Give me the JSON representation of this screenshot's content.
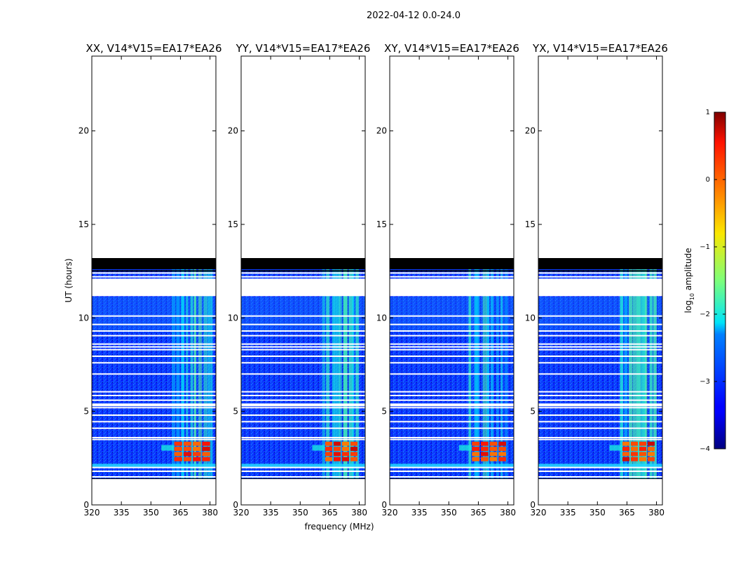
{
  "chart_data": {
    "type": "heatmap",
    "suptitle": "2022-04-12 0.0-24.0",
    "xlabel": "frequency (MHz)",
    "ylabel": "UT (hours)",
    "xlim": [
      320,
      383
    ],
    "ylim": [
      0,
      24
    ],
    "xticks": [
      "320",
      "335",
      "350",
      "365",
      "380"
    ],
    "yticks": [
      "0",
      "5",
      "10",
      "15",
      "20"
    ],
    "panels": [
      {
        "title": "XX, V14*V15=EA17*EA26",
        "rfi_x": [
          360,
          381
        ],
        "bright_band_y": [
          9.3,
          11.1
        ]
      },
      {
        "title": "YY, V14*V15=EA17*EA26",
        "rfi_x": [
          361,
          380
        ],
        "bright_band_y": [
          9.3,
          11.1
        ]
      },
      {
        "title": "XY, V14*V15=EA17*EA26",
        "rfi_x": [
          360,
          380
        ],
        "bright_band_y": [
          9.3,
          11.1
        ]
      },
      {
        "title": "YX, V14*V15=EA17*EA26",
        "rfi_x": [
          361,
          380
        ],
        "bright_band_y": [
          9.3,
          11.1
        ]
      }
    ],
    "colorbar": {
      "label": "log10 amplitude",
      "label_base": "log",
      "label_sub": "10",
      "label_rest": " amplitude",
      "range": [
        -4,
        1
      ],
      "ticks": [
        "1",
        "0",
        "−1",
        "−2",
        "−3",
        "−4"
      ],
      "colormap": "jet"
    },
    "data_coverage_hours": [
      1.4,
      13.2
    ],
    "flagged_black_hours": [
      12.6,
      13.2
    ],
    "strong_rfi_hours": [
      2.3,
      3.4
    ],
    "strong_rfi_log_amplitude": 0.3
  }
}
